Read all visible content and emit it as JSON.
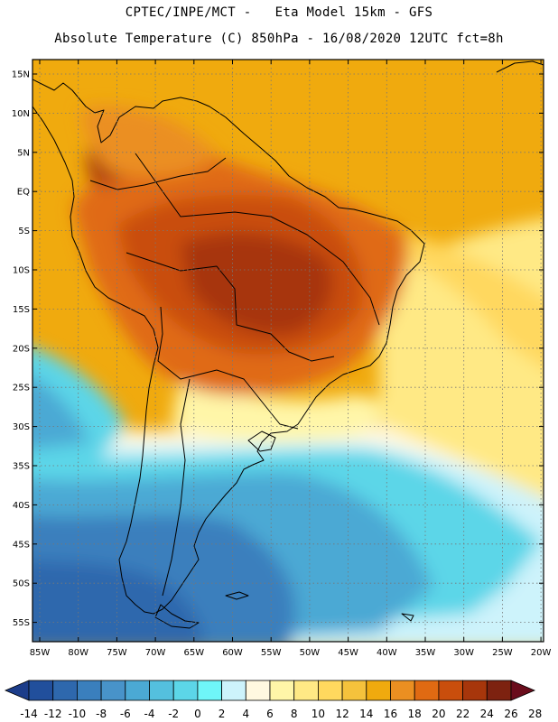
{
  "header": {
    "line1": "CPTEC/INPE/MCT -   Eta Model 15km - GFS",
    "line2": "Absolute Temperature (C) 850hPa - 16/08/2020 12UTC fct=8h"
  },
  "map": {
    "lat_labels": [
      "15N",
      "10N",
      "5N",
      "EQ",
      "5S",
      "10S",
      "15S",
      "20S",
      "25S",
      "30S",
      "35S",
      "40S",
      "45S",
      "50S",
      "55S"
    ],
    "lon_labels": [
      "85W",
      "80W",
      "75W",
      "70W",
      "65W",
      "60W",
      "55W",
      "50W",
      "45W",
      "40W",
      "35W",
      "30W",
      "25W",
      "20W"
    ]
  },
  "colorbar": {
    "labels": [
      "-14",
      "-12",
      "-10",
      "-8",
      "-6",
      "-4",
      "-2",
      "0",
      "2",
      "4",
      "6",
      "8",
      "10",
      "12",
      "14",
      "16",
      "18",
      "20",
      "22",
      "24",
      "26",
      "28"
    ],
    "colors": [
      "#1c3d8a",
      "#214f9c",
      "#2e68ad",
      "#3a7fbd",
      "#4893c9",
      "#4ba9d4",
      "#54c0de",
      "#5cd6e8",
      "#6ff6f8",
      "#cdf3fb",
      "#fff8e0",
      "#fff6a8",
      "#ffe985",
      "#ffd85e",
      "#f5c23c",
      "#f0aa0e",
      "#eb8f21",
      "#e06a12",
      "#c94e0c",
      "#a7360b",
      "#7d2210",
      "#6a0d1c"
    ]
  }
}
